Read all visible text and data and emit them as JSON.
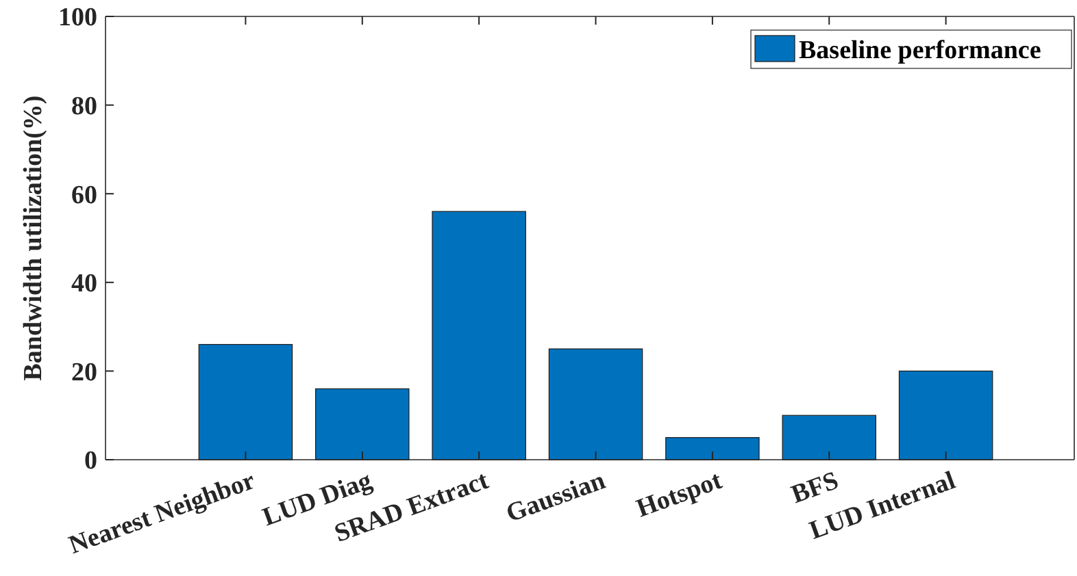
{
  "chart_data": {
    "type": "bar",
    "ylabel": "Bandwidth utilization(%)",
    "categories": [
      "Nearest Neighbor",
      "LUD Diag",
      "SRAD Extract",
      "Gaussian",
      "Hotspot",
      "BFS",
      "LUD Internal"
    ],
    "series": [
      {
        "name": "Baseline performance",
        "color": "#0072bd",
        "values": [
          26,
          16,
          56,
          25,
          5,
          10,
          20
        ]
      }
    ],
    "ylim": [
      0,
      100
    ],
    "yticks": [
      0,
      20,
      40,
      60,
      80,
      100
    ],
    "legend": "top right",
    "grid": false
  }
}
